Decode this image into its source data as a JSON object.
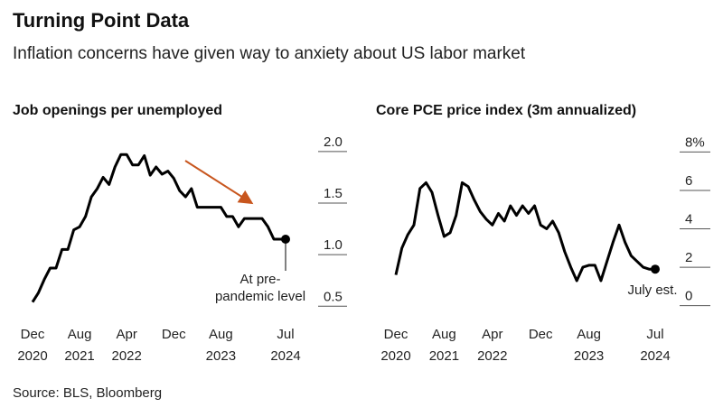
{
  "header": {
    "title": "Turning Point Data",
    "subtitle": "Inflation concerns have given way to anxiety about US labor market"
  },
  "source": "Source: BLS, Bloomberg",
  "chart_data": [
    {
      "type": "line",
      "title": "Job openings per unemployed",
      "categories": [
        "Dec 2020",
        null,
        null,
        null,
        null,
        null,
        null,
        null,
        "Aug 2021",
        null,
        null,
        null,
        null,
        null,
        null,
        null,
        "Apr 2022",
        null,
        null,
        null,
        null,
        null,
        null,
        null,
        "Dec",
        null,
        null,
        null,
        null,
        null,
        null,
        null,
        "Aug 2023",
        null,
        null,
        null,
        null,
        null,
        null,
        null,
        null,
        null,
        null,
        "Jul 2024"
      ],
      "series": [
        {
          "name": "Job openings per unemployed",
          "color": "#000000",
          "values": [
            0.54,
            0.63,
            0.76,
            0.87,
            0.87,
            1.05,
            1.05,
            1.24,
            1.27,
            1.37,
            1.56,
            1.64,
            1.75,
            1.68,
            1.85,
            1.97,
            1.97,
            1.87,
            1.87,
            1.96,
            1.77,
            1.85,
            1.78,
            1.81,
            1.74,
            1.62,
            1.56,
            1.64,
            1.46,
            1.46,
            1.46,
            1.46,
            1.46,
            1.37,
            1.37,
            1.27,
            1.35,
            1.35,
            1.35,
            1.35,
            1.27,
            1.15,
            1.15,
            1.15
          ]
        }
      ],
      "ylim": [
        0.45,
        2.2
      ],
      "yticks": [
        {
          "value": 2,
          "label": "2.0"
        },
        1.5,
        {
          "value": 1,
          "label": "1.0"
        },
        0.5
      ],
      "annotation": "At pre-\npandemic level"
    },
    {
      "type": "line",
      "title": "Core PCE price index (3m annualized)",
      "categories": [
        "Dec 2020",
        null,
        null,
        null,
        null,
        null,
        null,
        null,
        "Aug 2021",
        null,
        null,
        null,
        null,
        null,
        null,
        null,
        "Apr 2022",
        null,
        null,
        null,
        null,
        null,
        null,
        null,
        "Dec",
        null,
        null,
        null,
        null,
        null,
        null,
        null,
        "Aug 2023",
        null,
        null,
        null,
        null,
        null,
        null,
        null,
        null,
        null,
        null,
        "Jul 2024"
      ],
      "series": [
        {
          "name": "Core PCE price index (3m annualized)",
          "color": "#000000",
          "values": [
            1.6,
            3.0,
            3.7,
            4.2,
            6.1,
            6.4,
            5.9,
            4.7,
            3.6,
            3.8,
            4.7,
            6.4,
            6.2,
            5.5,
            4.9,
            4.5,
            4.2,
            4.8,
            4.4,
            5.2,
            4.7,
            5.2,
            4.8,
            5.2,
            4.2,
            4.0,
            4.4,
            3.8,
            2.8,
            2.0,
            1.3,
            2.0,
            2.1,
            2.1,
            1.3,
            2.3,
            3.3,
            4.2,
            3.3,
            2.6,
            2.3,
            2.0,
            1.9,
            1.9
          ]
        }
      ],
      "ylim": [
        -0.3,
        9.1
      ],
      "yticks": [
        {
          "value": 8,
          "label": "8%"
        },
        6,
        4,
        2,
        0
      ],
      "annotation": "July est."
    }
  ]
}
